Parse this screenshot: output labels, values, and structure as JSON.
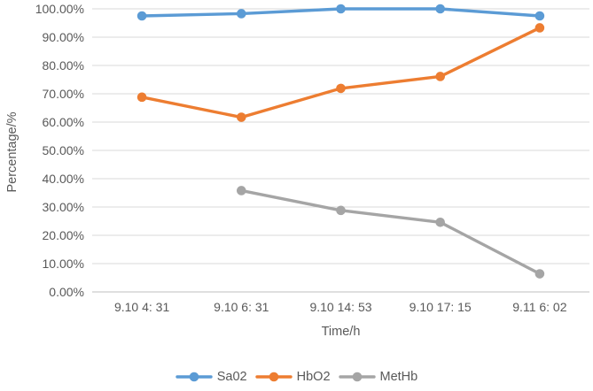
{
  "chart_data": {
    "type": "line",
    "title": "",
    "xlabel": "Time/h",
    "ylabel": "Percentage/%",
    "categories": [
      "9.10 4: 31",
      "9.10 6: 31",
      "9.10 14: 53",
      "9.10 17: 15",
      "9.11 6: 02"
    ],
    "y_ticks": [
      "0.00%",
      "10.00%",
      "20.00%",
      "30.00%",
      "40.00%",
      "50.00%",
      "60.00%",
      "70.00%",
      "80.00%",
      "90.00%",
      "100.00%"
    ],
    "ylim": [
      0,
      100
    ],
    "grid": true,
    "legend_position": "bottom",
    "series": [
      {
        "name": "Sa02",
        "color": "#5B9BD5",
        "values": [
          97.5,
          98.3,
          100.0,
          100.0,
          97.5
        ]
      },
      {
        "name": "HbO2",
        "color": "#ED7D31",
        "values": [
          68.8,
          61.7,
          71.9,
          76.1,
          93.3
        ]
      },
      {
        "name": "MetHb",
        "color": "#A5A5A5",
        "values": [
          null,
          35.8,
          28.8,
          24.6,
          6.4
        ]
      }
    ],
    "colors": {
      "gridline": "#D9D9D9",
      "axis_line": "#BFBFBF",
      "text": "#595959"
    }
  }
}
